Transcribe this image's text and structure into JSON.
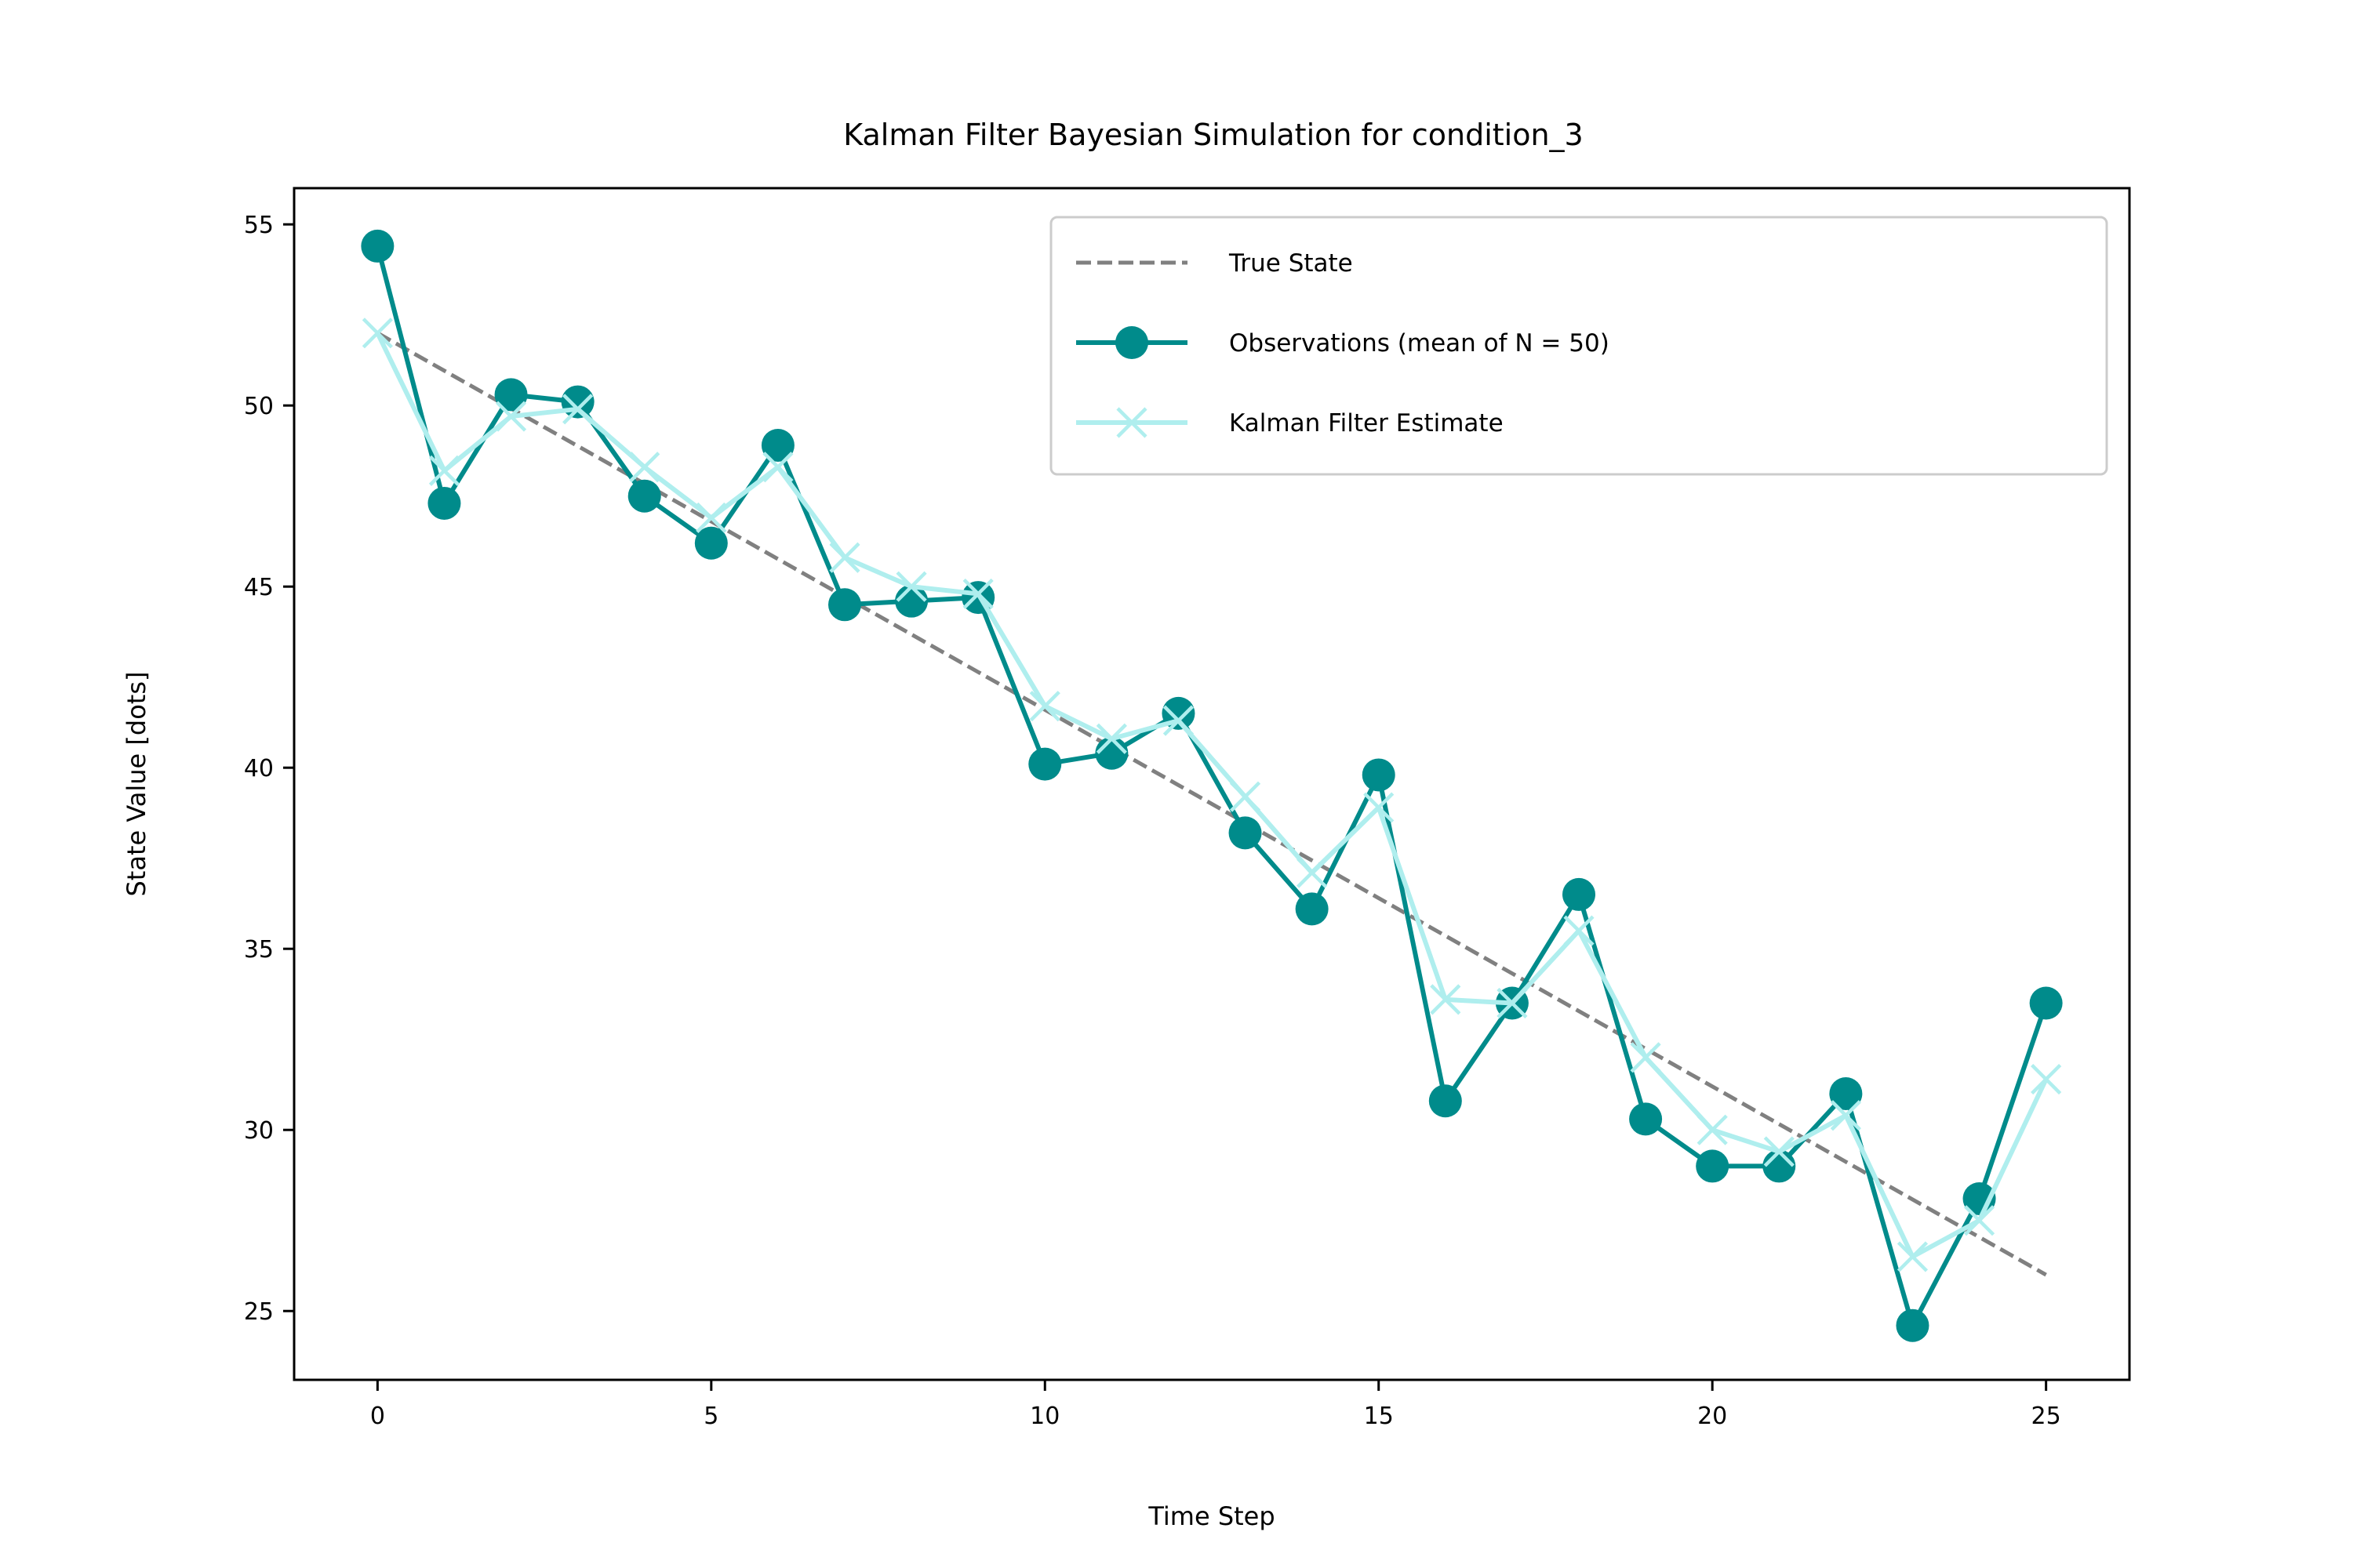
{
  "chart_data": {
    "type": "line",
    "title": "Kalman Filter Bayesian Simulation for condition_3",
    "xlabel": "Time Step",
    "ylabel": "State Value [dots]",
    "xlim": [
      -1.25,
      26.25
    ],
    "ylim": [
      23.1,
      56.0
    ],
    "xticks": [
      0,
      5,
      10,
      15,
      20,
      25
    ],
    "yticks": [
      25,
      30,
      35,
      40,
      45,
      50,
      55
    ],
    "grid": false,
    "legend": "top-right",
    "x": [
      0,
      1,
      2,
      3,
      4,
      5,
      6,
      7,
      8,
      9,
      10,
      11,
      12,
      13,
      14,
      15,
      16,
      17,
      18,
      19,
      20,
      21,
      22,
      23,
      24,
      25
    ],
    "series": [
      {
        "name": "True State",
        "style": "dashed",
        "color": "#808080",
        "marker": "none",
        "values": [
          52.0,
          50.96,
          49.92,
          48.88,
          47.84,
          46.8,
          45.76,
          44.72,
          43.68,
          42.64,
          41.6,
          40.56,
          39.52,
          38.48,
          37.44,
          36.4,
          35.36,
          34.32,
          33.28,
          32.24,
          31.2,
          30.16,
          29.12,
          28.08,
          27.04,
          26.0
        ]
      },
      {
        "name": "Observations (mean of N = 50)",
        "style": "solid",
        "color": "#008b8b",
        "marker": "circle",
        "values": [
          54.4,
          47.3,
          50.3,
          50.1,
          47.5,
          46.2,
          48.9,
          44.5,
          44.6,
          44.7,
          40.1,
          40.4,
          41.5,
          38.2,
          36.1,
          39.8,
          30.8,
          33.5,
          36.5,
          30.3,
          29.0,
          29.0,
          31.0,
          24.6,
          28.1,
          33.5
        ]
      },
      {
        "name": "Kalman Filter Estimate",
        "style": "solid",
        "color": "#afeeee",
        "marker": "x",
        "values": [
          52.0,
          48.2,
          49.7,
          49.9,
          48.3,
          46.9,
          48.3,
          45.8,
          45.0,
          44.8,
          41.7,
          40.8,
          41.3,
          39.2,
          37.1,
          38.9,
          33.6,
          33.5,
          35.5,
          32.0,
          30.0,
          29.4,
          30.4,
          26.5,
          27.5,
          31.4
        ]
      }
    ]
  }
}
